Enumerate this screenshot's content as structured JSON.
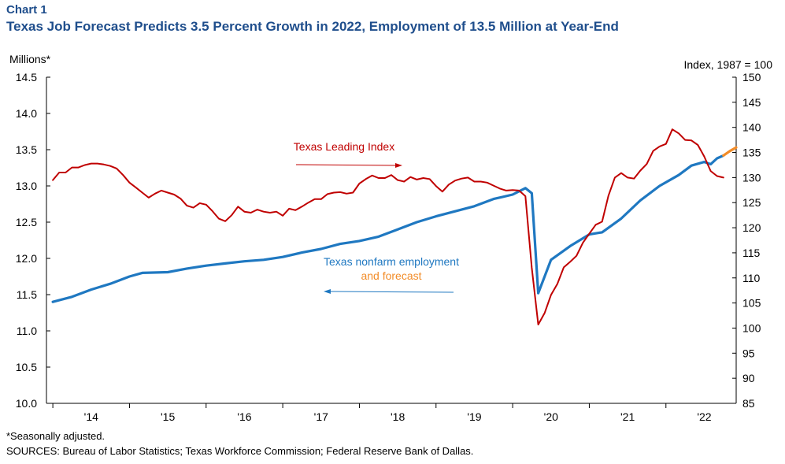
{
  "header": {
    "chart_label": "Chart 1",
    "title": "Texas Job Forecast Predicts 3.5 Percent Growth in 2022, Employment of 13.5 Million at Year-End"
  },
  "footer": {
    "note": "*Seasonally adjusted.",
    "sources": "SOURCES: Bureau of Labor Statistics; Texas Workforce Commission; Federal Reserve Bank of Dallas."
  },
  "colors": {
    "title": "#1f4e8c",
    "employment": "#1f78c1",
    "forecast": "#f28c28",
    "leading_index": "#c00000"
  },
  "chart_data": {
    "type": "line",
    "title": "Texas Job Forecast Predicts 3.5 Percent Growth in 2022, Employment of 13.5 Million at Year-End",
    "left_axis": {
      "label": "Millions*",
      "range": [
        10.0,
        14.5
      ],
      "ticks": [
        "10.0",
        "10.5",
        "11.0",
        "11.5",
        "12.0",
        "12.5",
        "13.0",
        "13.5",
        "14.0",
        "14.5"
      ]
    },
    "right_axis": {
      "label": "Index,  1987 = 100",
      "range": [
        85,
        150
      ],
      "ticks": [
        "85",
        "90",
        "95",
        "100",
        "105",
        "110",
        "115",
        "120",
        "125",
        "130",
        "135",
        "140",
        "145",
        "150"
      ]
    },
    "x_axis": {
      "range": [
        "2013-12",
        "2022-12"
      ],
      "tick_labels": [
        "'14",
        "'15",
        "'16",
        "'17",
        "'18",
        "'19",
        "'20",
        "'21",
        "'22"
      ],
      "tick_years": [
        2014,
        2015,
        2016,
        2017,
        2018,
        2019,
        2020,
        2021,
        2022
      ]
    },
    "grid": false,
    "annotations": {
      "leading_index": "Texas Leading Index",
      "employment_line1": "Texas nonfarm employment",
      "employment_line2": "and forecast"
    },
    "series": [
      {
        "name": "Texas nonfarm employment",
        "axis": "left",
        "points": [
          [
            "2014-01",
            11.4
          ],
          [
            "2014-04",
            11.47
          ],
          [
            "2014-07",
            11.57
          ],
          [
            "2014-10",
            11.65
          ],
          [
            "2015-01",
            11.75
          ],
          [
            "2015-03",
            11.8
          ],
          [
            "2015-07",
            11.81
          ],
          [
            "2015-10",
            11.86
          ],
          [
            "2016-01",
            11.9
          ],
          [
            "2016-04",
            11.93
          ],
          [
            "2016-07",
            11.96
          ],
          [
            "2016-10",
            11.98
          ],
          [
            "2017-01",
            12.02
          ],
          [
            "2017-04",
            12.08
          ],
          [
            "2017-07",
            12.13
          ],
          [
            "2017-10",
            12.2
          ],
          [
            "2018-01",
            12.24
          ],
          [
            "2018-04",
            12.3
          ],
          [
            "2018-07",
            12.4
          ],
          [
            "2018-10",
            12.5
          ],
          [
            "2019-01",
            12.58
          ],
          [
            "2019-04",
            12.65
          ],
          [
            "2019-07",
            12.72
          ],
          [
            "2019-10",
            12.82
          ],
          [
            "2020-01",
            12.88
          ],
          [
            "2020-03",
            12.97
          ],
          [
            "2020-04",
            12.9
          ],
          [
            "2020-05",
            11.52
          ],
          [
            "2020-07",
            11.98
          ],
          [
            "2020-10",
            12.17
          ],
          [
            "2021-01",
            12.33
          ],
          [
            "2021-03",
            12.36
          ],
          [
            "2021-06",
            12.55
          ],
          [
            "2021-09",
            12.8
          ],
          [
            "2021-12",
            13.0
          ],
          [
            "2022-03",
            13.15
          ],
          [
            "2022-05",
            13.28
          ],
          [
            "2022-07",
            13.33
          ],
          [
            "2022-08",
            13.3
          ],
          [
            "2022-09",
            13.38
          ],
          [
            "2022-10",
            13.42
          ]
        ]
      },
      {
        "name": "Forecast",
        "axis": "left",
        "points": [
          [
            "2022-10",
            13.42
          ],
          [
            "2022-11",
            13.48
          ],
          [
            "2022-12",
            13.53
          ]
        ]
      },
      {
        "name": "Texas Leading Index",
        "axis": "right",
        "points": [
          [
            "2014-01",
            129.5
          ],
          [
            "2014-02",
            131
          ],
          [
            "2014-03",
            131
          ],
          [
            "2014-04",
            132
          ],
          [
            "2014-05",
            132
          ],
          [
            "2014-06",
            132.5
          ],
          [
            "2014-07",
            132.8
          ],
          [
            "2014-08",
            132.8
          ],
          [
            "2014-09",
            132.6
          ],
          [
            "2014-10",
            132.3
          ],
          [
            "2014-11",
            131.8
          ],
          [
            "2014-12",
            130.5
          ],
          [
            "2015-01",
            129
          ],
          [
            "2015-02",
            128
          ],
          [
            "2015-03",
            127
          ],
          [
            "2015-04",
            126
          ],
          [
            "2015-05",
            126.8
          ],
          [
            "2015-06",
            127.4
          ],
          [
            "2015-07",
            127
          ],
          [
            "2015-08",
            126.6
          ],
          [
            "2015-09",
            125.8
          ],
          [
            "2015-10",
            124.4
          ],
          [
            "2015-11",
            124
          ],
          [
            "2015-12",
            124.9
          ],
          [
            "2016-01",
            124.6
          ],
          [
            "2016-02",
            123.3
          ],
          [
            "2016-03",
            121.8
          ],
          [
            "2016-04",
            121.3
          ],
          [
            "2016-05",
            122.5
          ],
          [
            "2016-06",
            124.2
          ],
          [
            "2016-07",
            123.2
          ],
          [
            "2016-08",
            123
          ],
          [
            "2016-09",
            123.6
          ],
          [
            "2016-10",
            123.2
          ],
          [
            "2016-11",
            123
          ],
          [
            "2016-12",
            123.2
          ],
          [
            "2017-01",
            122.4
          ],
          [
            "2017-02",
            123.8
          ],
          [
            "2017-03",
            123.5
          ],
          [
            "2017-04",
            124.2
          ],
          [
            "2017-05",
            125
          ],
          [
            "2017-06",
            125.7
          ],
          [
            "2017-07",
            125.7
          ],
          [
            "2017-08",
            126.7
          ],
          [
            "2017-09",
            127
          ],
          [
            "2017-10",
            127.1
          ],
          [
            "2017-11",
            126.8
          ],
          [
            "2017-12",
            127
          ],
          [
            "2018-01",
            128.8
          ],
          [
            "2018-02",
            129.7
          ],
          [
            "2018-03",
            130.4
          ],
          [
            "2018-04",
            129.9
          ],
          [
            "2018-05",
            129.9
          ],
          [
            "2018-06",
            130.5
          ],
          [
            "2018-07",
            129.5
          ],
          [
            "2018-08",
            129.2
          ],
          [
            "2018-09",
            130.1
          ],
          [
            "2018-10",
            129.6
          ],
          [
            "2018-11",
            129.9
          ],
          [
            "2018-12",
            129.7
          ],
          [
            "2019-01",
            128.3
          ],
          [
            "2019-02",
            127.2
          ],
          [
            "2019-03",
            128.6
          ],
          [
            "2019-04",
            129.4
          ],
          [
            "2019-05",
            129.8
          ],
          [
            "2019-06",
            130
          ],
          [
            "2019-07",
            129.2
          ],
          [
            "2019-08",
            129.2
          ],
          [
            "2019-09",
            129
          ],
          [
            "2019-10",
            128.4
          ],
          [
            "2019-11",
            127.8
          ],
          [
            "2019-12",
            127.4
          ],
          [
            "2020-01",
            127.5
          ],
          [
            "2020-02",
            127.4
          ],
          [
            "2020-03",
            126.3
          ],
          [
            "2020-04",
            112
          ],
          [
            "2020-05",
            100.7
          ],
          [
            "2020-06",
            103
          ],
          [
            "2020-07",
            106.6
          ],
          [
            "2020-08",
            108.8
          ],
          [
            "2020-09",
            112.1
          ],
          [
            "2020-10",
            113.2
          ],
          [
            "2020-11",
            114.4
          ],
          [
            "2020-12",
            117
          ],
          [
            "2021-01",
            118.8
          ],
          [
            "2021-02",
            120.6
          ],
          [
            "2021-03",
            121.2
          ],
          [
            "2021-04",
            126.4
          ],
          [
            "2021-05",
            130
          ],
          [
            "2021-06",
            130.9
          ],
          [
            "2021-07",
            130
          ],
          [
            "2021-08",
            129.8
          ],
          [
            "2021-09",
            131.4
          ],
          [
            "2021-10",
            132.7
          ],
          [
            "2021-11",
            135.3
          ],
          [
            "2021-12",
            136.2
          ],
          [
            "2022-01",
            136.7
          ],
          [
            "2022-02",
            139.6
          ],
          [
            "2022-03",
            138.8
          ],
          [
            "2022-04",
            137.5
          ],
          [
            "2022-05",
            137.4
          ],
          [
            "2022-06",
            136.5
          ],
          [
            "2022-07",
            134.2
          ],
          [
            "2022-08",
            131.3
          ],
          [
            "2022-09",
            130.3
          ],
          [
            "2022-10",
            130
          ]
        ]
      }
    ]
  }
}
